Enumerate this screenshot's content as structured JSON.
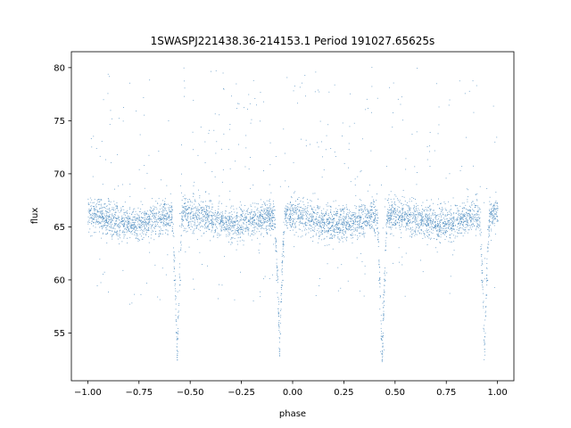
{
  "chart_data": {
    "type": "scatter",
    "title": "1SWASPJ221438.36-214153.1 Period 191027.65625s",
    "xlabel": "phase",
    "ylabel": "flux",
    "xlim": [
      -1.08,
      1.08
    ],
    "ylim": [
      50.5,
      81.5
    ],
    "x_ticks": [
      -1.0,
      -0.75,
      -0.5,
      -0.25,
      0.0,
      0.25,
      0.5,
      0.75,
      1.0
    ],
    "x_tick_labels": [
      "−1.00",
      "−0.75",
      "−0.50",
      "−0.25",
      "0.00",
      "0.25",
      "0.50",
      "0.75",
      "1.00"
    ],
    "y_ticks": [
      55,
      60,
      65,
      70,
      75,
      80
    ],
    "y_tick_labels": [
      "55",
      "60",
      "65",
      "70",
      "75",
      "80"
    ],
    "grid": false,
    "legend": "none",
    "point_color": "#3a7fb8",
    "baseline_flux": 65.8,
    "primary_eclipse_phases": [
      -0.565,
      0.435
    ],
    "primary_eclipse_min_flux": 52.5,
    "secondary_eclipse_phases": [
      -0.065,
      0.935
    ],
    "secondary_eclipse_min_flux": 53.5,
    "eclipse_half_width_phase": 0.025,
    "points": [
      [
        -1.0,
        65.5
      ],
      [
        -0.9,
        66.0
      ],
      [
        -0.8,
        65.4
      ],
      [
        -0.7,
        65.9
      ],
      [
        -0.6,
        65.2
      ],
      [
        -0.58,
        60.0
      ],
      [
        -0.565,
        52.5
      ],
      [
        -0.55,
        60.0
      ],
      [
        -0.5,
        66.3
      ],
      [
        -0.4,
        66.1
      ],
      [
        -0.3,
        66.0
      ],
      [
        -0.2,
        65.8
      ],
      [
        -0.1,
        65.6
      ],
      [
        -0.08,
        60.0
      ],
      [
        -0.065,
        53.5
      ],
      [
        -0.05,
        60.0
      ],
      [
        0.0,
        65.6
      ],
      [
        0.1,
        65.5
      ],
      [
        0.2,
        65.8
      ],
      [
        0.3,
        66.0
      ],
      [
        0.4,
        65.9
      ],
      [
        0.42,
        60.0
      ],
      [
        0.435,
        52.5
      ],
      [
        0.45,
        60.0
      ],
      [
        0.5,
        66.4
      ],
      [
        0.6,
        66.2
      ],
      [
        0.7,
        66.1
      ],
      [
        0.8,
        65.8
      ],
      [
        0.9,
        65.7
      ],
      [
        0.92,
        60.0
      ],
      [
        0.935,
        53.5
      ],
      [
        0.95,
        60.0
      ],
      [
        1.0,
        65.6
      ]
    ]
  }
}
